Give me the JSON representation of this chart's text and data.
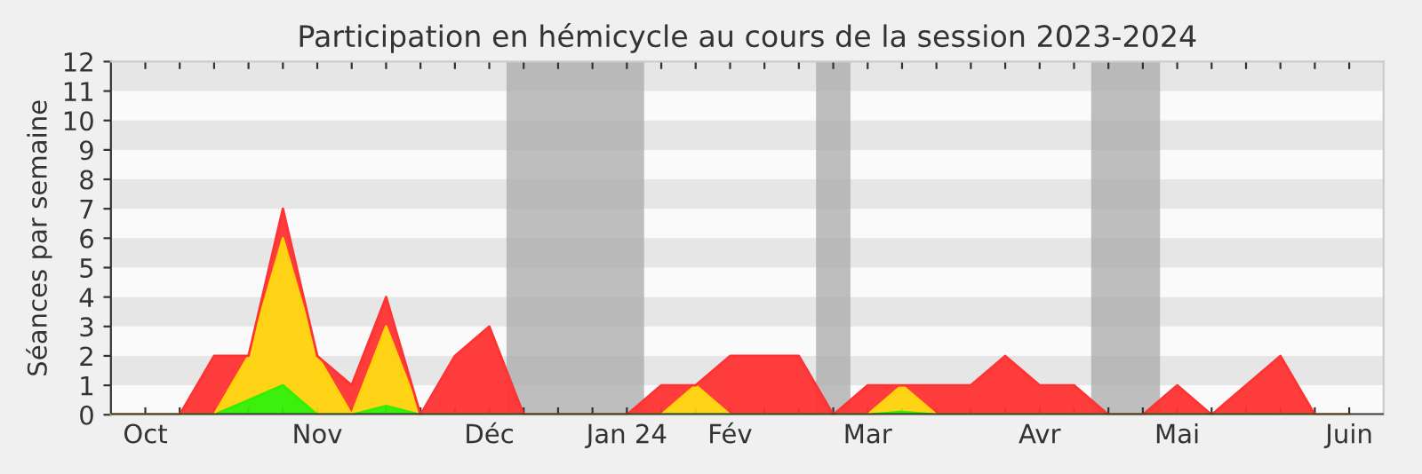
{
  "chart_data": {
    "type": "area",
    "stacked": true,
    "title": "Participation en hémicycle au cours de la session 2023-2024",
    "ylabel": "Séances par semaine",
    "x": [
      "2023-10-02",
      "2023-10-09",
      "2023-10-16",
      "2023-10-23",
      "2023-10-30",
      "2023-11-06",
      "2023-11-13",
      "2023-11-20",
      "2023-11-27",
      "2023-12-04",
      "2023-12-11",
      "2023-12-18",
      "2023-12-25",
      "2024-01-01",
      "2024-01-08",
      "2024-01-15",
      "2024-01-22",
      "2024-01-29",
      "2024-02-05",
      "2024-02-12",
      "2024-02-19",
      "2024-02-26",
      "2024-03-04",
      "2024-03-11",
      "2024-03-18",
      "2024-03-25",
      "2024-04-01",
      "2024-04-08",
      "2024-04-15",
      "2024-04-22",
      "2024-04-29",
      "2024-05-06",
      "2024-05-13",
      "2024-05-20",
      "2024-05-27",
      "2024-06-03",
      "2024-06-10"
    ],
    "series": [
      {
        "color": "#33ee00",
        "values": [
          0,
          0,
          0,
          0,
          0.5,
          1,
          0,
          0,
          0.3,
          0,
          0,
          0,
          0,
          0,
          0,
          0,
          0,
          0,
          0,
          0,
          0,
          0,
          0,
          0.1,
          0,
          0,
          0,
          0,
          0,
          0,
          0,
          0,
          0,
          0,
          0,
          0,
          0
        ]
      },
      {
        "color": "#ffd20a",
        "values": [
          0,
          0,
          0,
          0,
          1.5,
          5,
          2,
          0,
          2.7,
          0,
          0,
          0,
          0,
          0,
          0,
          0,
          0,
          1,
          0,
          0,
          0,
          0,
          0,
          0.9,
          0,
          0,
          0,
          0,
          0,
          0,
          0,
          0,
          0,
          0,
          0,
          0,
          0
        ]
      },
      {
        "color": "#ff3333",
        "values": [
          0,
          0,
          0,
          2,
          0,
          1,
          0,
          1,
          1,
          0,
          2,
          3,
          0,
          0,
          0,
          0,
          1,
          0,
          2,
          2,
          2,
          0,
          1,
          0,
          1,
          1,
          2,
          1,
          1,
          0,
          0,
          1,
          0,
          1,
          2,
          0,
          0
        ]
      }
    ],
    "xlim": [
      "2023-10-02",
      "2024-06-17"
    ],
    "xticks": [
      {
        "value": "2023-10-09",
        "label": "Oct"
      },
      {
        "value": "2023-10-16",
        "label": null
      },
      {
        "value": "2023-10-23",
        "label": null
      },
      {
        "value": "2023-10-30",
        "label": null
      },
      {
        "value": "2023-11-06",
        "label": null
      },
      {
        "value": "2023-11-13",
        "label": "Nov"
      },
      {
        "value": "2023-11-20",
        "label": null
      },
      {
        "value": "2023-11-27",
        "label": null
      },
      {
        "value": "2023-12-04",
        "label": null
      },
      {
        "value": "2023-12-11",
        "label": null
      },
      {
        "value": "2023-12-18",
        "label": "Déc"
      },
      {
        "value": "2023-12-25",
        "label": null
      },
      {
        "value": "2024-01-01",
        "label": null
      },
      {
        "value": "2024-01-08",
        "label": null
      },
      {
        "value": "2024-01-15",
        "label": "Jan 24"
      },
      {
        "value": "2024-01-22",
        "label": null
      },
      {
        "value": "2024-01-29",
        "label": null
      },
      {
        "value": "2024-02-05",
        "label": "Fév"
      },
      {
        "value": "2024-02-12",
        "label": null
      },
      {
        "value": "2024-02-19",
        "label": null
      },
      {
        "value": "2024-02-26",
        "label": null
      },
      {
        "value": "2024-03-04",
        "label": "Mar"
      },
      {
        "value": "2024-03-11",
        "label": null
      },
      {
        "value": "2024-03-18",
        "label": null
      },
      {
        "value": "2024-03-25",
        "label": null
      },
      {
        "value": "2024-04-01",
        "label": null
      },
      {
        "value": "2024-04-08",
        "label": "Avr"
      },
      {
        "value": "2024-04-15",
        "label": null
      },
      {
        "value": "2024-04-22",
        "label": null
      },
      {
        "value": "2024-04-29",
        "label": null
      },
      {
        "value": "2024-05-06",
        "label": "Mai"
      },
      {
        "value": "2024-05-13",
        "label": null
      },
      {
        "value": "2024-05-20",
        "label": null
      },
      {
        "value": "2024-05-27",
        "label": null
      },
      {
        "value": "2024-06-03",
        "label": null
      },
      {
        "value": "2024-06-10",
        "label": "Juin"
      }
    ],
    "ylim": [
      0,
      12
    ],
    "yticks": [
      0,
      1,
      2,
      3,
      4,
      5,
      6,
      7,
      8,
      9,
      10,
      11,
      12
    ],
    "bands": [
      {
        "axis": "x",
        "from": "2023-12-21T12:00",
        "to": "2024-01-18T12:00",
        "color": "#aaaaaa"
      },
      {
        "axis": "x",
        "from": "2024-02-22T12:00",
        "to": "2024-02-29T12:00",
        "color": "#aaaaaa"
      },
      {
        "axis": "x",
        "from": "2024-04-18T12:00",
        "to": "2024-05-02T12:00",
        "color": "#aaaaaa"
      }
    ]
  }
}
